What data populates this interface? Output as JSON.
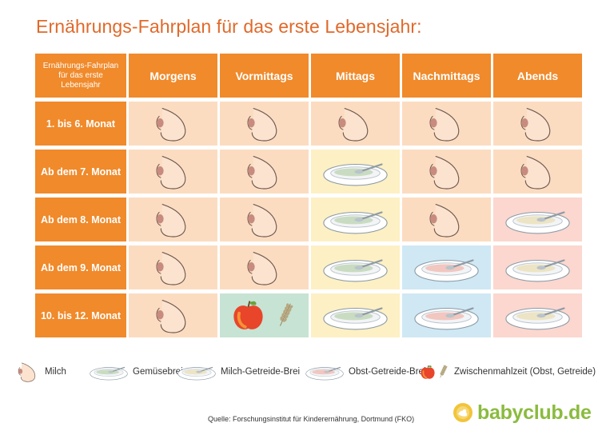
{
  "title": "Ernährungs-Fahrplan für das erste Lebensjahr:",
  "table": {
    "corner_label": "Ernährungs-Fahrplan für das erste Lebensjahr",
    "columns": [
      "Morgens",
      "Vormittags",
      "Mittags",
      "Nachmittags",
      "Abends"
    ],
    "rows": [
      {
        "label": "1. bis 6. Monat",
        "cells": [
          "milch",
          "milch",
          "milch",
          "milch",
          "milch"
        ]
      },
      {
        "label": "Ab dem 7. Monat",
        "cells": [
          "milch",
          "milch",
          "gemuesebrei",
          "milch",
          "milch"
        ]
      },
      {
        "label": "Ab dem 8. Monat",
        "cells": [
          "milch",
          "milch",
          "gemuesebrei",
          "milch",
          "milch-getreide-brei"
        ]
      },
      {
        "label": "Ab dem 9. Monat",
        "cells": [
          "milch",
          "milch",
          "gemuesebrei",
          "obst-getreide-brei",
          "milch-getreide-brei"
        ]
      },
      {
        "label": "10. bis 12. Monat",
        "cells": [
          "milch",
          "zwischenmahlzeit",
          "gemuesebrei",
          "obst-getreide-brei",
          "milch-getreide-brei"
        ]
      }
    ]
  },
  "legend": [
    {
      "icon": "milch",
      "label": "Milch"
    },
    {
      "icon": "gemuesebrei",
      "label": "Gemüsebrei"
    },
    {
      "icon": "milch-getreide-brei",
      "label": "Milch-Getreide-Brei"
    },
    {
      "icon": "obst-getreide-brei",
      "label": "Obst-Getreide-Brei"
    },
    {
      "icon": "zwischenmahlzeit",
      "label": "Zwischenmahlzeit (Obst, Getreide)"
    }
  ],
  "source": "Quelle: Forschungsinstitut für Kinderernährung, Dortmund (FKO)",
  "brand": "babyclub.de",
  "colors": {
    "title": "#e0692a",
    "header": "#f08a2b",
    "milch_bg": "#fcdcc0",
    "gemuesebrei_bg": "#fdf0c4",
    "milch_getreide_bg": "#fbd7cf",
    "obst_getreide_bg": "#cfe8f4",
    "zwischenmahlzeit_bg": "#c7e3d3",
    "brand": "#8bbb3f"
  }
}
